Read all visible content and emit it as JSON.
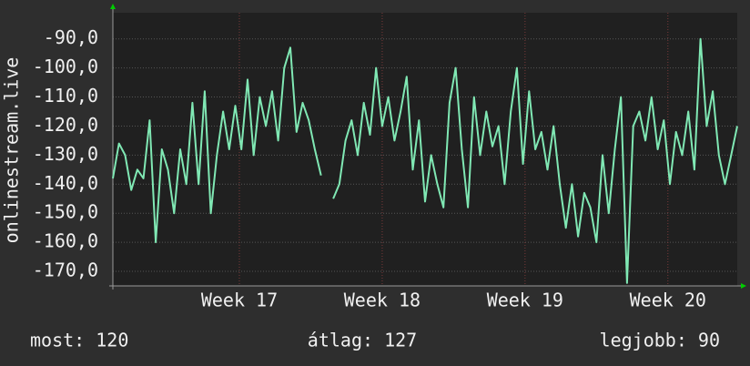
{
  "chart_data": {
    "type": "line",
    "ylabel": "onlinestream.live",
    "annotations": [
      "most: 120",
      "átlag: 127",
      "legjobb: 90"
    ],
    "x": [
      0,
      0.3,
      0.6,
      0.9,
      1.2,
      1.5,
      1.8,
      2.1,
      2.4,
      2.7,
      3,
      3.3,
      3.6,
      3.9,
      4.2,
      4.5,
      4.8,
      5.1,
      5.4,
      5.7,
      6,
      6.3,
      6.6,
      6.9,
      7.2,
      7.5,
      7.8,
      8.1,
      8.4,
      8.7,
      9,
      9.3,
      9.6,
      9.9,
      10.2,
      10.5,
      10.8,
      11.1,
      11.4,
      11.7,
      12,
      12.3,
      12.6,
      12.9,
      13.2,
      13.5,
      13.8,
      14.1,
      14.4,
      14.7,
      15,
      15.3,
      15.6,
      15.9,
      16.2,
      16.5,
      16.8,
      17.1,
      17.4,
      17.7,
      18,
      18.3,
      18.6,
      18.9,
      19.2,
      19.5,
      19.8,
      20.1,
      20.4,
      20.7,
      21,
      21.3,
      21.6,
      21.9,
      22.2,
      22.5,
      22.8,
      23.1,
      23.4,
      23.7,
      24,
      24.3,
      24.6,
      24.9,
      25.2,
      25.5,
      25.8,
      26.1,
      26.4,
      26.7,
      27,
      27.3,
      27.6,
      27.9,
      28.2,
      28.5,
      28.8,
      29.1,
      29.4,
      29.7,
      30,
      30.3,
      30.6
    ],
    "series": [
      {
        "name": "onlinestream.live",
        "color": "#80e8b4",
        "values": [
          -138,
          -126,
          -130,
          -142,
          -135,
          -138,
          -118,
          -160,
          -128,
          -135,
          -150,
          -128,
          -140,
          -112,
          -140,
          -108,
          -150,
          -130,
          -115,
          -128,
          -113,
          -128,
          -104,
          -130,
          -110,
          -120,
          -108,
          -125,
          -100,
          -93,
          -122,
          -112,
          -118,
          -128,
          -137,
          null,
          -145,
          -140,
          -125,
          -118,
          -130,
          -112,
          -123,
          -100,
          -120,
          -110,
          -125,
          -115,
          -103,
          -135,
          -118,
          -146,
          -130,
          -140,
          -148,
          -112,
          -100,
          -128,
          -148,
          -110,
          -130,
          -115,
          -127,
          -120,
          -140,
          -115,
          -100,
          -133,
          -108,
          -128,
          -122,
          -135,
          -120,
          -140,
          -155,
          -140,
          -158,
          -143,
          -148,
          -160,
          -130,
          -150,
          -128,
          -110,
          -174,
          -120,
          -115,
          -125,
          -110,
          -128,
          -118,
          -140,
          -122,
          -130,
          -115,
          -135,
          -90,
          -120,
          -108,
          -130,
          -140,
          -130,
          -120
        ]
      }
    ],
    "xlim": [
      0,
      30.6
    ],
    "xticks": [
      {
        "value": 6.2,
        "label": "Week 17"
      },
      {
        "value": 13.2,
        "label": "Week 18"
      },
      {
        "value": 20.2,
        "label": "Week 19"
      },
      {
        "value": 27.2,
        "label": "Week 20"
      }
    ],
    "ylim": [
      -175,
      -81
    ],
    "yticks": [
      {
        "value": -170,
        "label": "-170,0"
      },
      {
        "value": -160,
        "label": "-160,0"
      },
      {
        "value": -150,
        "label": "-150,0"
      },
      {
        "value": -140,
        "label": "-140,0"
      },
      {
        "value": -130,
        "label": "-130,0"
      },
      {
        "value": -120,
        "label": "-120,0"
      },
      {
        "value": -110,
        "label": "-110,0"
      },
      {
        "value": -100,
        "label": "-100,0"
      },
      {
        "value": -90,
        "label": "-90,0"
      }
    ],
    "grid": true
  }
}
